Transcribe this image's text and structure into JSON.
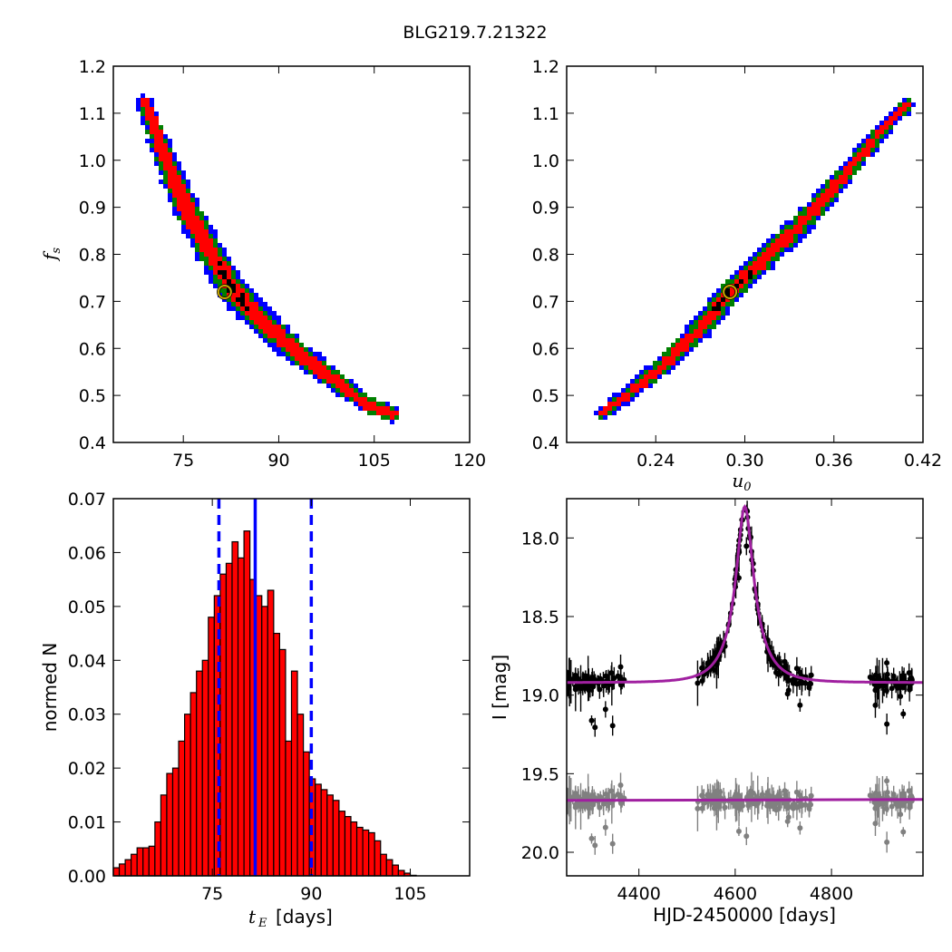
{
  "figure": {
    "title": "BLG219.7.21322"
  },
  "colors": {
    "blue": "#0000ff",
    "green": "#008000",
    "red": "#ff0000",
    "black": "#000000",
    "gray": "#808080",
    "magenta": "#a020a0",
    "marker_ring": "#ccaa00"
  },
  "chart_data": [
    {
      "type": "heatmap",
      "panel": "top-left",
      "xlabel": "",
      "ylabel": "f_s",
      "xlim": [
        64,
        120
      ],
      "ylim": [
        0.4,
        1.2
      ],
      "xticks": [
        "75",
        "90",
        "105",
        "120"
      ],
      "yticks": [
        "0.4",
        "0.5",
        "0.6",
        "0.7",
        "0.8",
        "0.9",
        "1.0",
        "1.1",
        "1.2"
      ],
      "ridge": [
        [
          69,
          1.12
        ],
        [
          72,
          1.01
        ],
        [
          75,
          0.91
        ],
        [
          79,
          0.81
        ],
        [
          83,
          0.72
        ],
        [
          88,
          0.65
        ],
        [
          93,
          0.59
        ],
        [
          99,
          0.53
        ],
        [
          104,
          0.48
        ],
        [
          108,
          0.46
        ]
      ],
      "best_fit": {
        "x": 81.5,
        "y": 0.72
      },
      "levels": [
        "blue",
        "green",
        "red",
        "black"
      ]
    },
    {
      "type": "heatmap",
      "panel": "top-right",
      "xlabel": "u_0",
      "ylabel": "",
      "xlim": [
        0.18,
        0.42
      ],
      "ylim": [
        0.4,
        1.2
      ],
      "xticks": [
        "0.24",
        "0.30",
        "0.36",
        "0.42"
      ],
      "yticks": [
        "0.4",
        "0.5",
        "0.6",
        "0.7",
        "0.8",
        "0.9",
        "1.0",
        "1.1",
        "1.2"
      ],
      "ridge": [
        [
          0.204,
          0.46
        ],
        [
          0.24,
          0.55
        ],
        [
          0.27,
          0.64
        ],
        [
          0.29,
          0.72
        ],
        [
          0.31,
          0.78
        ],
        [
          0.34,
          0.87
        ],
        [
          0.37,
          0.98
        ],
        [
          0.4,
          1.09
        ],
        [
          0.41,
          1.12
        ]
      ],
      "best_fit": {
        "x": 0.29,
        "y": 0.72
      },
      "levels": [
        "blue",
        "green",
        "red",
        "black"
      ]
    },
    {
      "type": "bar",
      "panel": "bottom-left",
      "xlabel_symbol": "t",
      "xlabel_sub": "E",
      "xlabel_unit": "[days]",
      "ylabel": "normed N",
      "xlim": [
        60,
        114
      ],
      "ylim": [
        0,
        0.07
      ],
      "xticks": [
        "75",
        "90",
        "105"
      ],
      "yticks": [
        "0.00",
        "0.01",
        "0.02",
        "0.03",
        "0.04",
        "0.05",
        "0.06",
        "0.07"
      ],
      "bin_start": 60.0,
      "bin_width": 0.9,
      "values": [
        0.0015,
        0.0022,
        0.003,
        0.004,
        0.0052,
        0.0052,
        0.0055,
        0.01,
        0.015,
        0.019,
        0.02,
        0.025,
        0.03,
        0.034,
        0.038,
        0.04,
        0.048,
        0.052,
        0.056,
        0.058,
        0.062,
        0.059,
        0.064,
        0.055,
        0.052,
        0.05,
        0.053,
        0.045,
        0.042,
        0.025,
        0.038,
        0.03,
        0.023,
        0.018,
        0.017,
        0.016,
        0.015,
        0.014,
        0.012,
        0.011,
        0.01,
        0.009,
        0.0085,
        0.008,
        0.0065,
        0.004,
        0.003,
        0.002,
        0.001,
        0.0005,
        0.0001
      ],
      "median_line": 81.5,
      "interval_lines": [
        76.0,
        90.0
      ]
    },
    {
      "type": "scatter",
      "panel": "bottom-right",
      "xlabel": "HJD-2450000 [days]",
      "ylabel": "I [mag]",
      "xlim": [
        4250,
        4990
      ],
      "ylim": [
        20.15,
        17.75
      ],
      "y_inverted": true,
      "xticks": [
        "4400",
        "4600",
        "4800"
      ],
      "yticks": [
        "18.0",
        "18.5",
        "19.0",
        "19.5",
        "20.0"
      ],
      "model": {
        "t0": 4620,
        "tE": 28,
        "baseline": 18.92,
        "peak": 17.8
      },
      "residual_baseline": 19.67,
      "observed_seasons": [
        [
          4250,
          4370
        ],
        [
          4520,
          4760
        ],
        [
          4880,
          4970
        ]
      ]
    }
  ]
}
